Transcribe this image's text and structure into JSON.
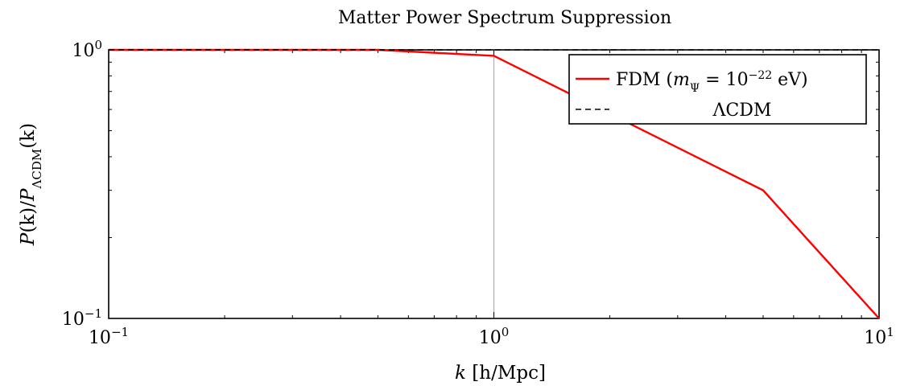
{
  "chart_data": {
    "type": "line",
    "title": "Matter Power Spectrum Suppression",
    "xlabel": "k [h/Mpc]",
    "ylabel": "P(k)/P_ΛCDM(k)",
    "xscale": "log",
    "yscale": "log",
    "xlim": [
      0.1,
      10
    ],
    "ylim": [
      0.1,
      1
    ],
    "grid": false,
    "legend_position": "top-right",
    "x_tick_labels": [
      {
        "base": "10",
        "exp": "−1",
        "value": 0.1
      },
      {
        "base": "10",
        "exp": "0",
        "value": 1
      },
      {
        "base": "10",
        "exp": "1",
        "value": 10
      }
    ],
    "y_tick_labels": [
      {
        "base": "10",
        "exp": "−1",
        "value": 0.1
      },
      {
        "base": "10",
        "exp": "0",
        "value": 1
      }
    ],
    "vline": {
      "x": 1
    },
    "series": [
      {
        "name": "FDM (mΨ = 10^−22 eV)",
        "legend": {
          "prefix": "FDM (",
          "m": "m",
          "sub": "Ψ",
          "equals": " = 10",
          "exp": "−22",
          "suffix": " eV)"
        },
        "color": "#ff0000",
        "style": "solid",
        "x": [
          0.1,
          0.5,
          1,
          5,
          10
        ],
        "y": [
          1.0,
          1.0,
          0.95,
          0.3,
          0.1
        ]
      },
      {
        "name": "ΛCDM",
        "legend": {
          "text": "ΛCDM"
        },
        "color": "#000000",
        "style": "dashed",
        "x": [
          0.1,
          10
        ],
        "y": [
          1.0,
          1.0
        ]
      }
    ]
  }
}
